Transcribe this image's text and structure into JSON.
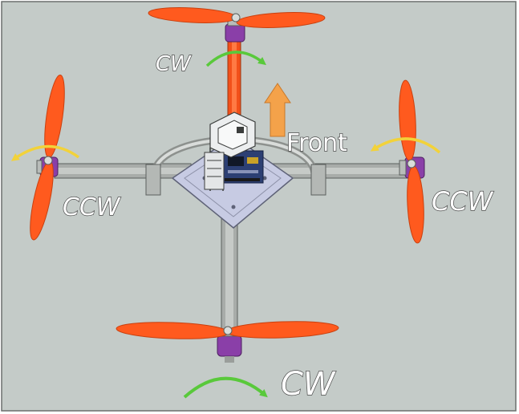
{
  "labels": {
    "front": "Front",
    "top_rotor": "CW",
    "bottom_rotor": "CW",
    "left_rotor": "CCW",
    "right_rotor": "CCW"
  },
  "colors": {
    "background": "#c4cbc8",
    "propeller": "#ff5a1e",
    "front_arm": "#f2501a",
    "arm": "#a8aca9",
    "motor": "#8a3fa8",
    "cw_arrow": "#59c93b",
    "ccw_arrow": "#f2d23a",
    "front_arrow": "#f4a24a"
  }
}
